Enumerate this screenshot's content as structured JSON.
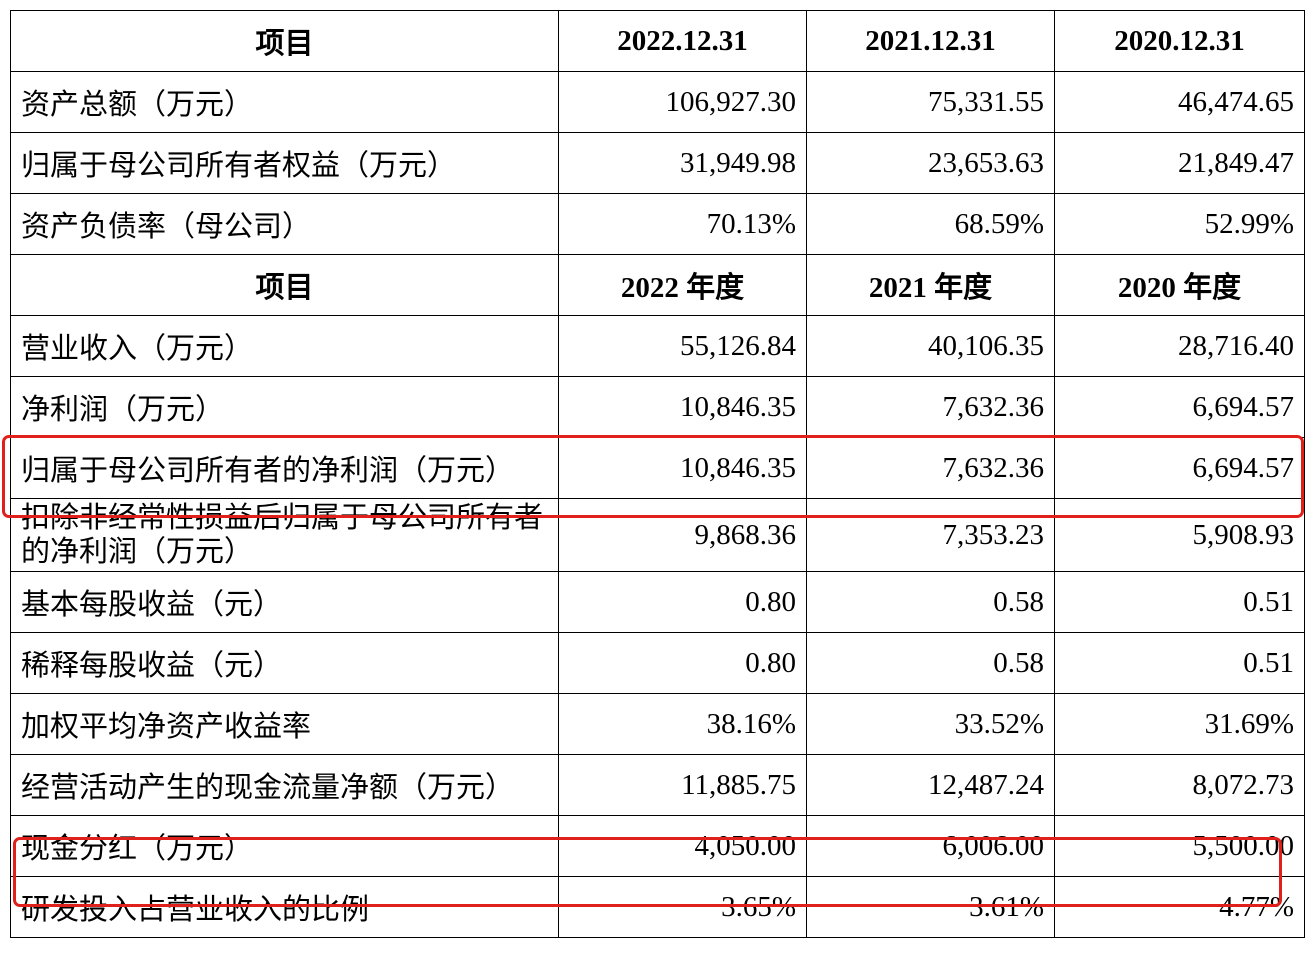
{
  "table": {
    "header1": [
      "项目",
      "2022.12.31",
      "2021.12.31",
      "2020.12.31"
    ],
    "balance_rows": [
      {
        "label": "资产总额（万元）",
        "v2022": "106,927.30",
        "v2021": "75,331.55",
        "v2020": "46,474.65"
      },
      {
        "label": "归属于母公司所有者权益（万元）",
        "v2022": "31,949.98",
        "v2021": "23,653.63",
        "v2020": "21,849.47"
      },
      {
        "label": "资产负债率（母公司）",
        "v2022": "70.13%",
        "v2021": "68.59%",
        "v2020": "52.99%"
      }
    ],
    "header2": [
      "项目",
      "2022 年度",
      "2021 年度",
      "2020 年度"
    ],
    "income_rows": [
      {
        "label": "营业收入（万元）",
        "v2022": "55,126.84",
        "v2021": "40,106.35",
        "v2020": "28,716.40"
      },
      {
        "label": "净利润（万元）",
        "v2022": "10,846.35",
        "v2021": "7,632.36",
        "v2020": "6,694.57"
      },
      {
        "label": "归属于母公司所有者的净利润（万元）",
        "v2022": "10,846.35",
        "v2021": "7,632.36",
        "v2020": "6,694.57"
      },
      {
        "label": "扣除非经常性损益后归属于母公司所有者的净利润（万元）",
        "v2022": "9,868.36",
        "v2021": "7,353.23",
        "v2020": "5,908.93"
      },
      {
        "label": "基本每股收益（元）",
        "v2022": "0.80",
        "v2021": "0.58",
        "v2020": "0.51"
      },
      {
        "label": "稀释每股收益（元）",
        "v2022": "0.80",
        "v2021": "0.58",
        "v2020": "0.51"
      },
      {
        "label": "加权平均净资产收益率",
        "v2022": "38.16%",
        "v2021": "33.52%",
        "v2020": "31.69%"
      },
      {
        "label": "经营活动产生的现金流量净额（万元）",
        "v2022": "11,885.75",
        "v2021": "12,487.24",
        "v2020": "8,072.73"
      },
      {
        "label": "现金分红（万元）",
        "v2022": "4,050.00",
        "v2021": "6,006.00",
        "v2020": "5,500.00"
      },
      {
        "label": "研发投入占营业收入的比例",
        "v2022": "3.65%",
        "v2021": "3.61%",
        "v2020": "4.77%"
      }
    ]
  },
  "highlight_color": "#e0201a"
}
